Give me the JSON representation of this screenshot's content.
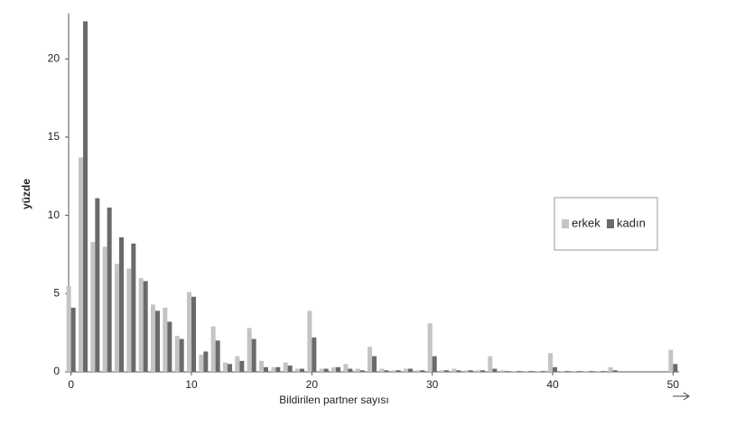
{
  "chart_data": {
    "type": "bar",
    "x_label": "Bildirilen partner sayısı",
    "y_label": "yüzde",
    "x": [
      0,
      1,
      2,
      3,
      4,
      5,
      6,
      7,
      8,
      9,
      10,
      11,
      12,
      13,
      14,
      15,
      16,
      17,
      18,
      19,
      20,
      21,
      22,
      23,
      24,
      25,
      26,
      27,
      28,
      29,
      30,
      31,
      32,
      33,
      34,
      35,
      36,
      37,
      38,
      39,
      40,
      41,
      42,
      43,
      44,
      45,
      46,
      47,
      48,
      49,
      50
    ],
    "series": [
      {
        "name": "erkek",
        "color": "#c4c4c4",
        "values": [
          5.5,
          13.7,
          8.3,
          8.0,
          6.9,
          6.6,
          6.0,
          4.3,
          4.1,
          2.3,
          5.1,
          1.1,
          2.9,
          0.6,
          1.0,
          2.8,
          0.7,
          0.3,
          0.6,
          0.2,
          3.9,
          0.2,
          0.3,
          0.5,
          0.2,
          1.6,
          0.2,
          0.1,
          0.2,
          0.1,
          3.1,
          0.1,
          0.2,
          0.1,
          0.1,
          1.0,
          0.1,
          0.05,
          0.05,
          0.05,
          1.2,
          0.05,
          0.05,
          0.05,
          0.05,
          0.3,
          0,
          0,
          0,
          0,
          1.4
        ]
      },
      {
        "name": "kadın",
        "color": "#6a6a6a",
        "values": [
          4.1,
          22.4,
          11.1,
          10.5,
          8.6,
          8.2,
          5.8,
          3.9,
          3.2,
          2.1,
          4.8,
          1.3,
          2.0,
          0.5,
          0.7,
          2.1,
          0.3,
          0.3,
          0.4,
          0.2,
          2.2,
          0.2,
          0.3,
          0.2,
          0.1,
          1.0,
          0.1,
          0.1,
          0.2,
          0.1,
          1.0,
          0.1,
          0.1,
          0.1,
          0.1,
          0.2,
          0.05,
          0.05,
          0.05,
          0.05,
          0.3,
          0.05,
          0.05,
          0.05,
          0.05,
          0.1,
          0,
          0,
          0,
          0,
          0.5
        ]
      }
    ],
    "xlim": [
      -0.5,
      50.5
    ],
    "xticks": [
      0,
      10,
      20,
      30,
      40,
      50
    ],
    "ylim": [
      0,
      22.9
    ],
    "yticks": [
      0,
      5,
      10,
      15,
      20
    ],
    "legend": "right"
  }
}
